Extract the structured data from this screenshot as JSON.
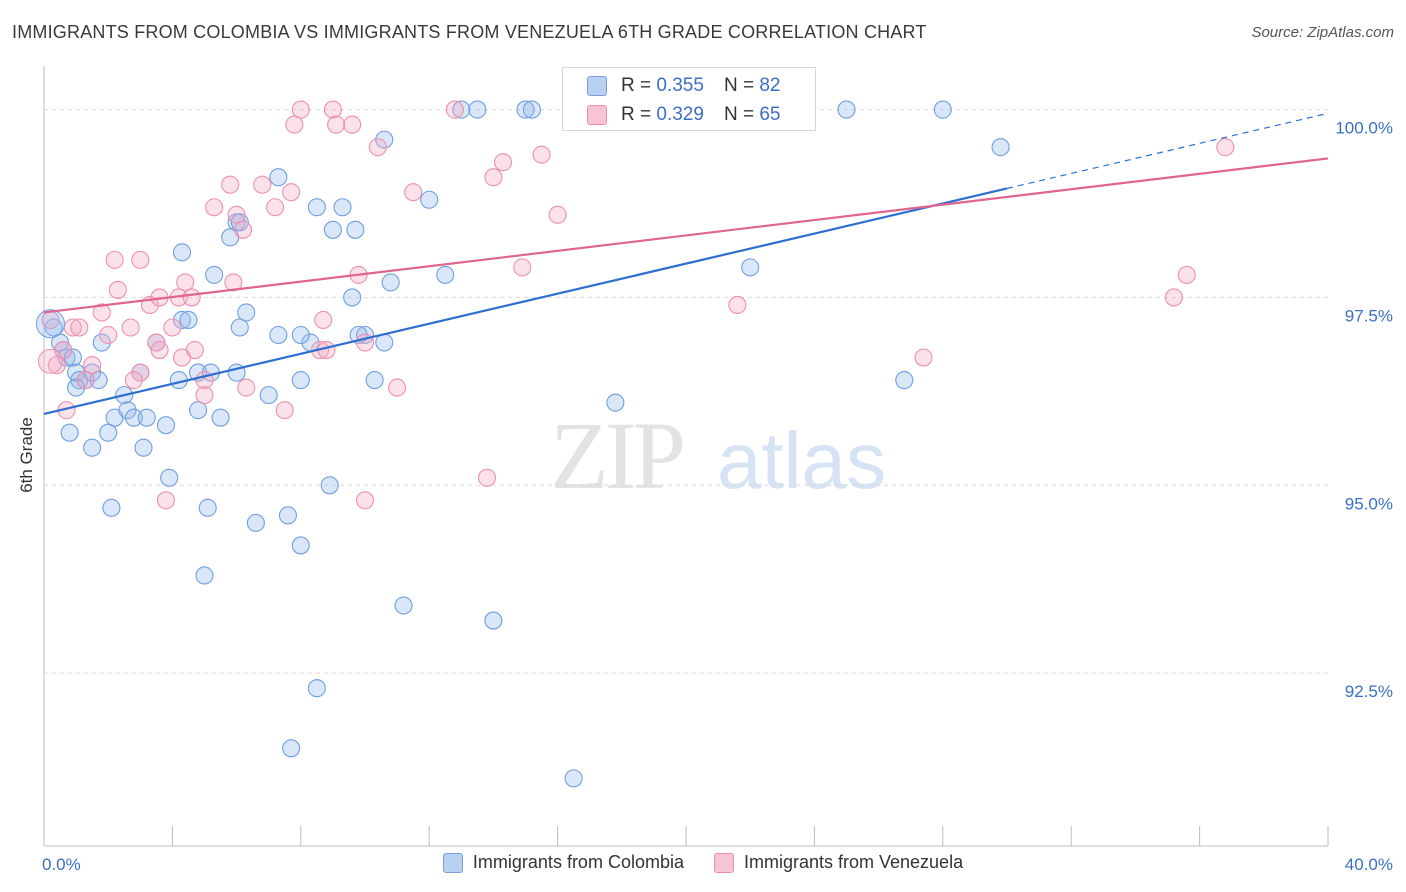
{
  "header": {
    "title": "IMMIGRANTS FROM COLOMBIA VS IMMIGRANTS FROM VENEZUELA 6TH GRADE CORRELATION CHART",
    "source": "Source: ZipAtlas.com"
  },
  "watermark": {
    "zip": "ZIP",
    "atlas": "atlas"
  },
  "stats": [
    {
      "r_label": "R =",
      "r_value": "0.355",
      "n_label": "N =",
      "n_value": "82",
      "fill": "#b8d0f2",
      "stroke": "#7aa0dc"
    },
    {
      "r_label": "R =",
      "r_value": "0.329",
      "n_label": "N =",
      "n_value": "65",
      "fill": "#f7c4d4",
      "stroke": "#e98fab"
    }
  ],
  "legend": [
    {
      "label": "Immigrants from Colombia",
      "fill": "#b8d0f2",
      "stroke": "#7aa0dc"
    },
    {
      "label": "Immigrants from Venezuela",
      "fill": "#f7c4d4",
      "stroke": "#e98fab"
    }
  ],
  "chart_data": {
    "type": "scatter",
    "title": "IMMIGRANTS FROM COLOMBIA VS IMMIGRANTS FROM VENEZUELA 6TH GRADE CORRELATION CHART",
    "xlabel": "",
    "ylabel": "6th Grade",
    "xlim": [
      0,
      40
    ],
    "ylim": [
      90.2,
      100.5
    ],
    "x_tick_labels": [
      {
        "value": 0,
        "label": "0.0%"
      },
      {
        "value": 40,
        "label": "40.0%"
      }
    ],
    "x_minor_ticks": [
      0,
      4,
      8,
      12,
      16,
      20,
      24,
      28,
      32,
      36,
      40
    ],
    "y_ticks": [
      {
        "value": 92.5,
        "label": "92.5%"
      },
      {
        "value": 95.0,
        "label": "95.0%"
      },
      {
        "value": 97.5,
        "label": "97.5%"
      },
      {
        "value": 100.0,
        "label": "100.0%"
      }
    ],
    "grid": true,
    "legend_position": "bottom",
    "series": [
      {
        "name": "Immigrants from Colombia",
        "color": "#6f9fe0",
        "trend_color": "#2c6fd1",
        "trend": {
          "x0": 0,
          "y0": 95.95,
          "x1": 30,
          "y1": 98.95,
          "dash_to_x": 40,
          "dash_to_y": 99.95
        },
        "points": [
          [
            0.3,
            97.1
          ],
          [
            0.5,
            96.9
          ],
          [
            0.6,
            96.8
          ],
          [
            0.7,
            96.7
          ],
          [
            0.9,
            96.7
          ],
          [
            1.0,
            96.5
          ],
          [
            1.1,
            96.4
          ],
          [
            1.3,
            96.4
          ],
          [
            1.5,
            96.5
          ],
          [
            1.8,
            96.9
          ],
          [
            0.8,
            95.7
          ],
          [
            1.5,
            95.5
          ],
          [
            2.0,
            95.7
          ],
          [
            2.2,
            95.9
          ],
          [
            2.6,
            96.0
          ],
          [
            2.8,
            95.9
          ],
          [
            3.2,
            95.9
          ],
          [
            3.1,
            95.5
          ],
          [
            3.8,
            95.8
          ],
          [
            4.2,
            96.4
          ],
          [
            3.5,
            96.9
          ],
          [
            4.3,
            97.2
          ],
          [
            4.5,
            97.2
          ],
          [
            4.8,
            96.5
          ],
          [
            5.3,
            97.8
          ],
          [
            5.8,
            98.3
          ],
          [
            6.0,
            98.5
          ],
          [
            6.1,
            97.1
          ],
          [
            6.3,
            97.3
          ],
          [
            6.0,
            96.5
          ],
          [
            5.2,
            96.5
          ],
          [
            4.8,
            96.0
          ],
          [
            5.5,
            95.9
          ],
          [
            7.0,
            96.2
          ],
          [
            7.3,
            97.0
          ],
          [
            8.0,
            96.4
          ],
          [
            8.3,
            96.9
          ],
          [
            8.0,
            97.0
          ],
          [
            7.3,
            99.1
          ],
          [
            8.5,
            98.7
          ],
          [
            9.0,
            98.4
          ],
          [
            9.3,
            98.7
          ],
          [
            9.6,
            97.5
          ],
          [
            9.7,
            98.4
          ],
          [
            10.0,
            97.0
          ],
          [
            10.3,
            96.4
          ],
          [
            10.6,
            96.9
          ],
          [
            10.6,
            99.6
          ],
          [
            10.8,
            97.7
          ],
          [
            12.0,
            98.8
          ],
          [
            12.5,
            97.8
          ],
          [
            13.0,
            100.0
          ],
          [
            13.5,
            100.0
          ],
          [
            15.0,
            100.0
          ],
          [
            20.5,
            100.0
          ],
          [
            25.0,
            100.0
          ],
          [
            28.0,
            100.0
          ],
          [
            29.8,
            99.5
          ],
          [
            22.0,
            97.9
          ],
          [
            26.8,
            96.4
          ],
          [
            17.8,
            96.1
          ],
          [
            3.9,
            95.1
          ],
          [
            2.1,
            94.7
          ],
          [
            5.1,
            94.7
          ],
          [
            6.6,
            94.5
          ],
          [
            7.6,
            94.6
          ],
          [
            8.0,
            94.2
          ],
          [
            8.9,
            95.0
          ],
          [
            5.0,
            93.8
          ],
          [
            11.2,
            93.4
          ],
          [
            14.0,
            93.2
          ],
          [
            8.5,
            92.3
          ],
          [
            7.7,
            91.5
          ],
          [
            16.5,
            91.1
          ],
          [
            15.2,
            100.0
          ],
          [
            3.0,
            96.5
          ],
          [
            1.7,
            96.4
          ],
          [
            2.5,
            96.2
          ],
          [
            6.1,
            98.5
          ],
          [
            9.8,
            97.0
          ],
          [
            4.3,
            98.1
          ],
          [
            1.0,
            96.3
          ]
        ]
      },
      {
        "name": "Immigrants from Venezuela",
        "color": "#ee90ae",
        "trend_color": "#e0658e",
        "trend": {
          "x0": 0,
          "y0": 97.3,
          "x1": 40,
          "y1": 99.35
        },
        "points": [
          [
            0.2,
            97.2
          ],
          [
            0.4,
            96.6
          ],
          [
            0.6,
            96.8
          ],
          [
            0.9,
            97.1
          ],
          [
            1.1,
            97.1
          ],
          [
            1.3,
            96.4
          ],
          [
            1.5,
            96.6
          ],
          [
            0.7,
            96.0
          ],
          [
            1.8,
            97.3
          ],
          [
            2.0,
            97.0
          ],
          [
            2.3,
            97.6
          ],
          [
            2.7,
            97.1
          ],
          [
            2.2,
            98.0
          ],
          [
            3.0,
            98.0
          ],
          [
            3.3,
            97.4
          ],
          [
            3.5,
            96.9
          ],
          [
            3.6,
            96.8
          ],
          [
            3.0,
            96.5
          ],
          [
            3.6,
            97.5
          ],
          [
            4.0,
            97.1
          ],
          [
            4.2,
            97.5
          ],
          [
            4.4,
            97.7
          ],
          [
            4.7,
            96.8
          ],
          [
            4.6,
            97.5
          ],
          [
            4.3,
            96.7
          ],
          [
            5.0,
            96.4
          ],
          [
            5.3,
            98.7
          ],
          [
            5.8,
            99.0
          ],
          [
            6.0,
            98.6
          ],
          [
            6.2,
            98.4
          ],
          [
            5.9,
            97.7
          ],
          [
            6.3,
            96.3
          ],
          [
            6.8,
            99.0
          ],
          [
            7.2,
            98.7
          ],
          [
            7.7,
            98.9
          ],
          [
            7.8,
            99.8
          ],
          [
            8.0,
            100.0
          ],
          [
            8.6,
            96.8
          ],
          [
            8.7,
            97.2
          ],
          [
            9.0,
            100.0
          ],
          [
            9.1,
            99.8
          ],
          [
            9.6,
            99.8
          ],
          [
            9.8,
            97.8
          ],
          [
            10.0,
            96.9
          ],
          [
            11.0,
            96.3
          ],
          [
            10.4,
            99.5
          ],
          [
            11.5,
            98.9
          ],
          [
            12.8,
            100.0
          ],
          [
            14.0,
            99.1
          ],
          [
            14.3,
            99.3
          ],
          [
            14.9,
            97.9
          ],
          [
            15.5,
            99.4
          ],
          [
            16.0,
            98.6
          ],
          [
            13.8,
            95.1
          ],
          [
            10.0,
            94.8
          ],
          [
            3.8,
            94.8
          ],
          [
            7.5,
            96.0
          ],
          [
            21.6,
            97.4
          ],
          [
            27.4,
            96.7
          ],
          [
            35.2,
            97.5
          ],
          [
            35.6,
            97.8
          ],
          [
            36.8,
            99.5
          ],
          [
            5.0,
            96.2
          ],
          [
            8.8,
            96.8
          ],
          [
            2.8,
            96.4
          ]
        ]
      }
    ]
  }
}
